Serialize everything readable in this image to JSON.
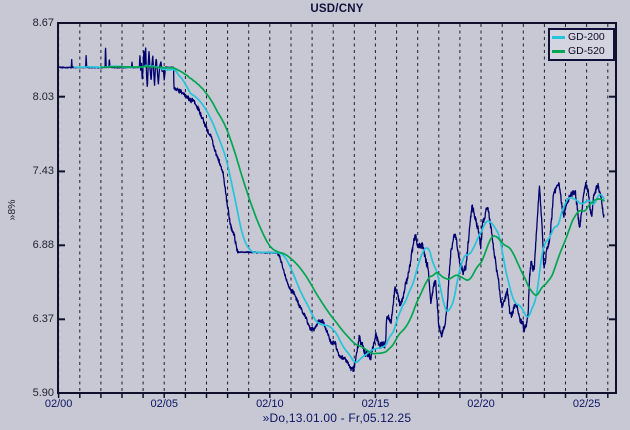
{
  "window": {
    "background": "#c8c8d4"
  },
  "chart_data": {
    "type": "line",
    "title": "USD/CNY",
    "footer": "»Do,13.01.00 - Fr,05.12.25",
    "y_axis_label": "»8%",
    "y_scale": "log-8-percent-steps",
    "grid": "vertical-dashed-yearly",
    "y_range": [
      5.9,
      8.67
    ],
    "x_range": [
      2000.07,
      2026.49
    ],
    "y_ticks": [
      {
        "label": "8.67",
        "value": 8.67
      },
      {
        "label": "8.03",
        "value": 8.03
      },
      {
        "label": "7.43",
        "value": 7.43
      },
      {
        "label": "6.88",
        "value": 6.88
      },
      {
        "label": "6.37",
        "value": 6.37
      },
      {
        "label": "5.90",
        "value": 5.9
      }
    ],
    "x_ticks": [
      {
        "label": "02/00",
        "year": 2000.1
      },
      {
        "label": "02/05",
        "year": 2005.1
      },
      {
        "label": "02/10",
        "year": 2010.1
      },
      {
        "label": "02/15",
        "year": 2015.1
      },
      {
        "label": "02/20",
        "year": 2020.1
      },
      {
        "label": "02/25",
        "year": 2025.1
      }
    ],
    "legend": {
      "position": "top-right",
      "items": [
        {
          "label": "GD-200",
          "color": "#24c4da"
        },
        {
          "label": "GD-520",
          "color": "#00a651"
        }
      ]
    },
    "series": [
      {
        "name": "USD/CNY",
        "color": "#000070",
        "points": [
          [
            2000.07,
            8.278
          ],
          [
            2000.7,
            8.278
          ],
          [
            2000.72,
            8.35
          ],
          [
            2000.74,
            8.278
          ],
          [
            2001.38,
            8.278
          ],
          [
            2001.4,
            8.39
          ],
          [
            2001.43,
            8.278
          ],
          [
            2002.3,
            8.278
          ],
          [
            2002.32,
            8.49
          ],
          [
            2002.35,
            8.278
          ],
          [
            2002.48,
            8.278
          ],
          [
            2002.5,
            8.36
          ],
          [
            2002.53,
            8.278
          ],
          [
            2003.55,
            8.278
          ],
          [
            2003.57,
            8.33
          ],
          [
            2003.6,
            8.278
          ],
          [
            2003.92,
            8.278
          ],
          [
            2003.95,
            8.4
          ],
          [
            2003.98,
            8.25
          ],
          [
            2004.02,
            8.32
          ],
          [
            2004.06,
            8.16
          ],
          [
            2004.1,
            8.3
          ],
          [
            2004.14,
            8.43
          ],
          [
            2004.18,
            8.28
          ],
          [
            2004.22,
            8.46
          ],
          [
            2004.26,
            8.22
          ],
          [
            2004.3,
            8.1
          ],
          [
            2004.34,
            8.3
          ],
          [
            2004.38,
            8.42
          ],
          [
            2004.43,
            8.26
          ],
          [
            2004.48,
            8.16
          ],
          [
            2004.52,
            8.3
          ],
          [
            2004.56,
            8.38
          ],
          [
            2004.6,
            8.24
          ],
          [
            2004.64,
            8.12
          ],
          [
            2004.68,
            8.28
          ],
          [
            2004.72,
            8.36
          ],
          [
            2004.77,
            8.26
          ],
          [
            2004.82,
            8.13
          ],
          [
            2004.88,
            8.28
          ],
          [
            2004.94,
            8.33
          ],
          [
            2005.0,
            8.24
          ],
          [
            2005.05,
            8.28
          ],
          [
            2005.1,
            8.17
          ],
          [
            2005.16,
            8.28
          ],
          [
            2005.3,
            8.278
          ],
          [
            2005.54,
            8.278
          ],
          [
            2005.56,
            8.105
          ],
          [
            2005.7,
            8.095
          ],
          [
            2005.9,
            8.075
          ],
          [
            2006.1,
            8.04
          ],
          [
            2006.3,
            8.01
          ],
          [
            2006.5,
            7.99
          ],
          [
            2006.7,
            7.93
          ],
          [
            2006.9,
            7.86
          ],
          [
            2007.1,
            7.77
          ],
          [
            2007.3,
            7.71
          ],
          [
            2007.5,
            7.6
          ],
          [
            2007.7,
            7.51
          ],
          [
            2007.9,
            7.41
          ],
          [
            2008.0,
            7.28
          ],
          [
            2008.1,
            7.16
          ],
          [
            2008.2,
            7.06
          ],
          [
            2008.3,
            6.99
          ],
          [
            2008.42,
            6.95
          ],
          [
            2008.52,
            6.86
          ],
          [
            2008.58,
            6.832
          ],
          [
            2010.45,
            6.826
          ],
          [
            2010.6,
            6.79
          ],
          [
            2010.8,
            6.68
          ],
          [
            2011.0,
            6.59
          ],
          [
            2011.25,
            6.54
          ],
          [
            2011.5,
            6.46
          ],
          [
            2011.75,
            6.4
          ],
          [
            2012.0,
            6.31
          ],
          [
            2012.2,
            6.3
          ],
          [
            2012.4,
            6.36
          ],
          [
            2012.6,
            6.36
          ],
          [
            2012.8,
            6.29
          ],
          [
            2013.0,
            6.22
          ],
          [
            2013.2,
            6.21
          ],
          [
            2013.4,
            6.13
          ],
          [
            2013.6,
            6.12
          ],
          [
            2013.8,
            6.09
          ],
          [
            2013.95,
            6.05
          ],
          [
            2014.05,
            6.04
          ],
          [
            2014.12,
            6.07
          ],
          [
            2014.22,
            6.16
          ],
          [
            2014.33,
            6.25
          ],
          [
            2014.45,
            6.22
          ],
          [
            2014.6,
            6.15
          ],
          [
            2014.75,
            6.14
          ],
          [
            2014.9,
            6.12
          ],
          [
            2015.0,
            6.2
          ],
          [
            2015.12,
            6.27
          ],
          [
            2015.25,
            6.21
          ],
          [
            2015.4,
            6.2
          ],
          [
            2015.58,
            6.21
          ],
          [
            2015.61,
            6.33
          ],
          [
            2015.64,
            6.4
          ],
          [
            2015.75,
            6.37
          ],
          [
            2015.85,
            6.35
          ],
          [
            2015.95,
            6.49
          ],
          [
            2016.03,
            6.59
          ],
          [
            2016.15,
            6.55
          ],
          [
            2016.28,
            6.46
          ],
          [
            2016.4,
            6.5
          ],
          [
            2016.55,
            6.62
          ],
          [
            2016.65,
            6.67
          ],
          [
            2016.78,
            6.78
          ],
          [
            2016.88,
            6.89
          ],
          [
            2016.98,
            6.95
          ],
          [
            2017.08,
            6.88
          ],
          [
            2017.2,
            6.87
          ],
          [
            2017.33,
            6.89
          ],
          [
            2017.45,
            6.8
          ],
          [
            2017.58,
            6.73
          ],
          [
            2017.68,
            6.56
          ],
          [
            2017.73,
            6.47
          ],
          [
            2017.85,
            6.6
          ],
          [
            2017.95,
            6.62
          ],
          [
            2018.02,
            6.49
          ],
          [
            2018.1,
            6.33
          ],
          [
            2018.22,
            6.27
          ],
          [
            2018.32,
            6.31
          ],
          [
            2018.42,
            6.36
          ],
          [
            2018.5,
            6.46
          ],
          [
            2018.58,
            6.66
          ],
          [
            2018.68,
            6.84
          ],
          [
            2018.8,
            6.93
          ],
          [
            2018.88,
            6.97
          ],
          [
            2018.97,
            6.88
          ],
          [
            2019.08,
            6.77
          ],
          [
            2019.18,
            6.71
          ],
          [
            2019.28,
            6.69
          ],
          [
            2019.38,
            6.72
          ],
          [
            2019.48,
            6.88
          ],
          [
            2019.58,
            7.05
          ],
          [
            2019.68,
            7.17
          ],
          [
            2019.75,
            7.12
          ],
          [
            2019.85,
            7.07
          ],
          [
            2019.95,
            7.01
          ],
          [
            2020.03,
            6.93
          ],
          [
            2020.08,
            6.86
          ],
          [
            2020.15,
            7.01
          ],
          [
            2020.25,
            7.09
          ],
          [
            2020.35,
            7.14
          ],
          [
            2020.42,
            7.16
          ],
          [
            2020.5,
            7.07
          ],
          [
            2020.6,
            6.98
          ],
          [
            2020.7,
            6.85
          ],
          [
            2020.8,
            6.74
          ],
          [
            2020.9,
            6.66
          ],
          [
            2021.0,
            6.52
          ],
          [
            2021.1,
            6.46
          ],
          [
            2021.22,
            6.5
          ],
          [
            2021.35,
            6.56
          ],
          [
            2021.45,
            6.43
          ],
          [
            2021.55,
            6.4
          ],
          [
            2021.65,
            6.45
          ],
          [
            2021.75,
            6.48
          ],
          [
            2021.85,
            6.43
          ],
          [
            2021.95,
            6.36
          ],
          [
            2022.05,
            6.35
          ],
          [
            2022.15,
            6.31
          ],
          [
            2022.25,
            6.34
          ],
          [
            2022.33,
            6.4
          ],
          [
            2022.4,
            6.66
          ],
          [
            2022.48,
            6.76
          ],
          [
            2022.55,
            6.7
          ],
          [
            2022.62,
            6.72
          ],
          [
            2022.7,
            6.93
          ],
          [
            2022.76,
            7.05
          ],
          [
            2022.82,
            7.2
          ],
          [
            2022.87,
            7.32
          ],
          [
            2022.92,
            7.18
          ],
          [
            2022.97,
            7.08
          ],
          [
            2023.02,
            6.93
          ],
          [
            2023.07,
            6.72
          ],
          [
            2023.15,
            6.78
          ],
          [
            2023.22,
            6.87
          ],
          [
            2023.3,
            6.89
          ],
          [
            2023.38,
            6.95
          ],
          [
            2023.45,
            7.09
          ],
          [
            2023.52,
            7.24
          ],
          [
            2023.6,
            7.28
          ],
          [
            2023.68,
            7.31
          ],
          [
            2023.75,
            7.34
          ],
          [
            2023.82,
            7.31
          ],
          [
            2023.9,
            7.22
          ],
          [
            2023.97,
            7.14
          ],
          [
            2024.03,
            7.1
          ],
          [
            2024.1,
            7.16
          ],
          [
            2024.18,
            7.2
          ],
          [
            2024.28,
            7.24
          ],
          [
            2024.38,
            7.24
          ],
          [
            2024.48,
            7.26
          ],
          [
            2024.56,
            7.28
          ],
          [
            2024.64,
            7.18
          ],
          [
            2024.72,
            7.06
          ],
          [
            2024.78,
            7.01
          ],
          [
            2024.85,
            7.1
          ],
          [
            2024.93,
            7.2
          ],
          [
            2025.0,
            7.3
          ],
          [
            2025.07,
            7.33
          ],
          [
            2025.13,
            7.3
          ],
          [
            2025.2,
            7.25
          ],
          [
            2025.28,
            7.12
          ],
          [
            2025.35,
            7.1
          ],
          [
            2025.42,
            7.22
          ],
          [
            2025.5,
            7.28
          ],
          [
            2025.57,
            7.31
          ],
          [
            2025.63,
            7.33
          ],
          [
            2025.7,
            7.28
          ],
          [
            2025.78,
            7.22
          ],
          [
            2025.85,
            7.15
          ],
          [
            2025.92,
            7.1
          ]
        ],
        "volatility": [
          [
            2000.07,
            0.0006
          ],
          [
            2005.56,
            0.003
          ],
          [
            2008.6,
            0.0007
          ],
          [
            2010.48,
            0.0026
          ],
          [
            2014.02,
            0.0045
          ]
        ]
      },
      {
        "name": "GD-200",
        "type": "moving_average",
        "window_days": 200,
        "color": "#24c4da"
      },
      {
        "name": "GD-520",
        "type": "moving_average",
        "window_days": 520,
        "color": "#00a651"
      }
    ]
  }
}
